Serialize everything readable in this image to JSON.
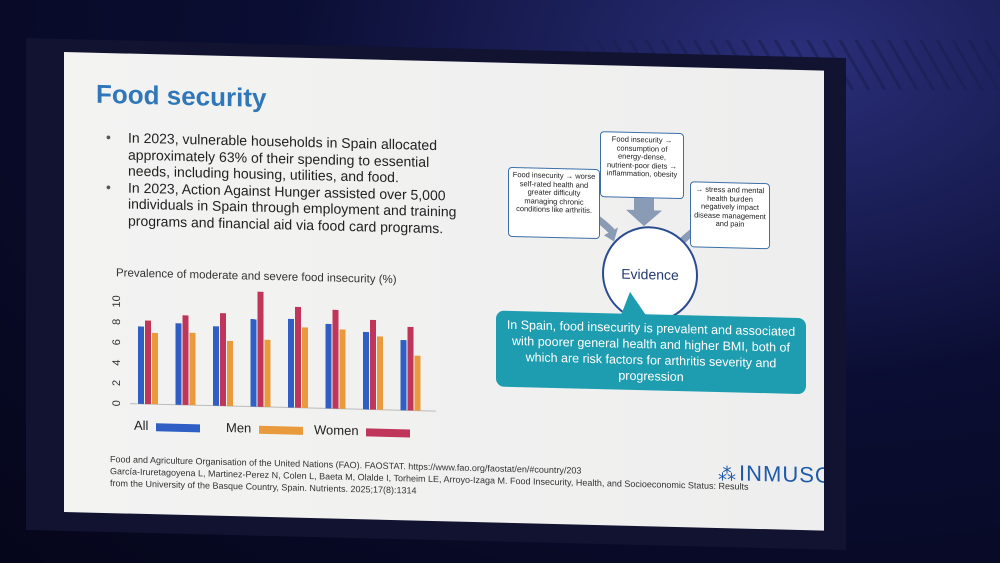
{
  "slide": {
    "title": "Food security",
    "bullets": [
      "In 2023, vulnerable households in Spain allocated approximately 63% of their spending to essential needs, including housing, utilities, and food.",
      "In 2023, Action Against Hunger assisted over 5,000 individuals in Spain through employment and training programs and financial aid via food card programs."
    ],
    "diagram": {
      "box_top": "Food insecurity → consumption of energy-dense, nutrient-poor diets → inflammation, obesity",
      "box_left": "Food insecurity → worse self-rated health and greater difficulty managing chronic conditions like arthritis.",
      "box_right": "→ stress and mental health burden negatively impact disease management and pain",
      "center": "Evidence",
      "conclusion": "In Spain, food insecurity is prevalent and associated with poorer general health and higher BMI, both of which are risk factors for arthritis severity and progression"
    },
    "references": [
      "Food and Agriculture Organisation of the United Nations (FAO). FAOSTAT. https://www.fao.org/faostat/en/#country/203",
      "García-Iruretagoyena L, Martinez-Perez N, Colen L, Baeta M, Olalde I, Torheim LE, Arroyo-Izaga M. Food Insecurity, Health, and Socioeconomic Status: Results from the University of the Basque Country, Spain. Nutrients. 2025;17(8):1314"
    ],
    "logo": "INMUSC"
  },
  "chart_data": {
    "type": "bar",
    "title": "Prevalence of moderate and severe food insecurity (%)",
    "categories": [
      "",
      "",
      "",
      "",
      "",
      "",
      "",
      ""
    ],
    "series": [
      {
        "name": "All",
        "color": "#2f5fc4",
        "values": [
          7.6,
          8.0,
          7.8,
          8.6,
          8.7,
          8.3,
          7.6,
          6.9
        ]
      },
      {
        "name": "Women",
        "color": "#c0355a",
        "values": [
          8.2,
          8.8,
          9.1,
          11.3,
          9.9,
          9.7,
          8.8,
          8.2
        ]
      },
      {
        "name": "Men",
        "color": "#e89a3c",
        "values": [
          7.0,
          7.1,
          6.4,
          6.6,
          7.9,
          7.8,
          7.2,
          5.4
        ]
      }
    ],
    "yticks": [
      0,
      2,
      4,
      6,
      8,
      10
    ],
    "ylim": [
      0,
      11
    ],
    "grid": false
  }
}
